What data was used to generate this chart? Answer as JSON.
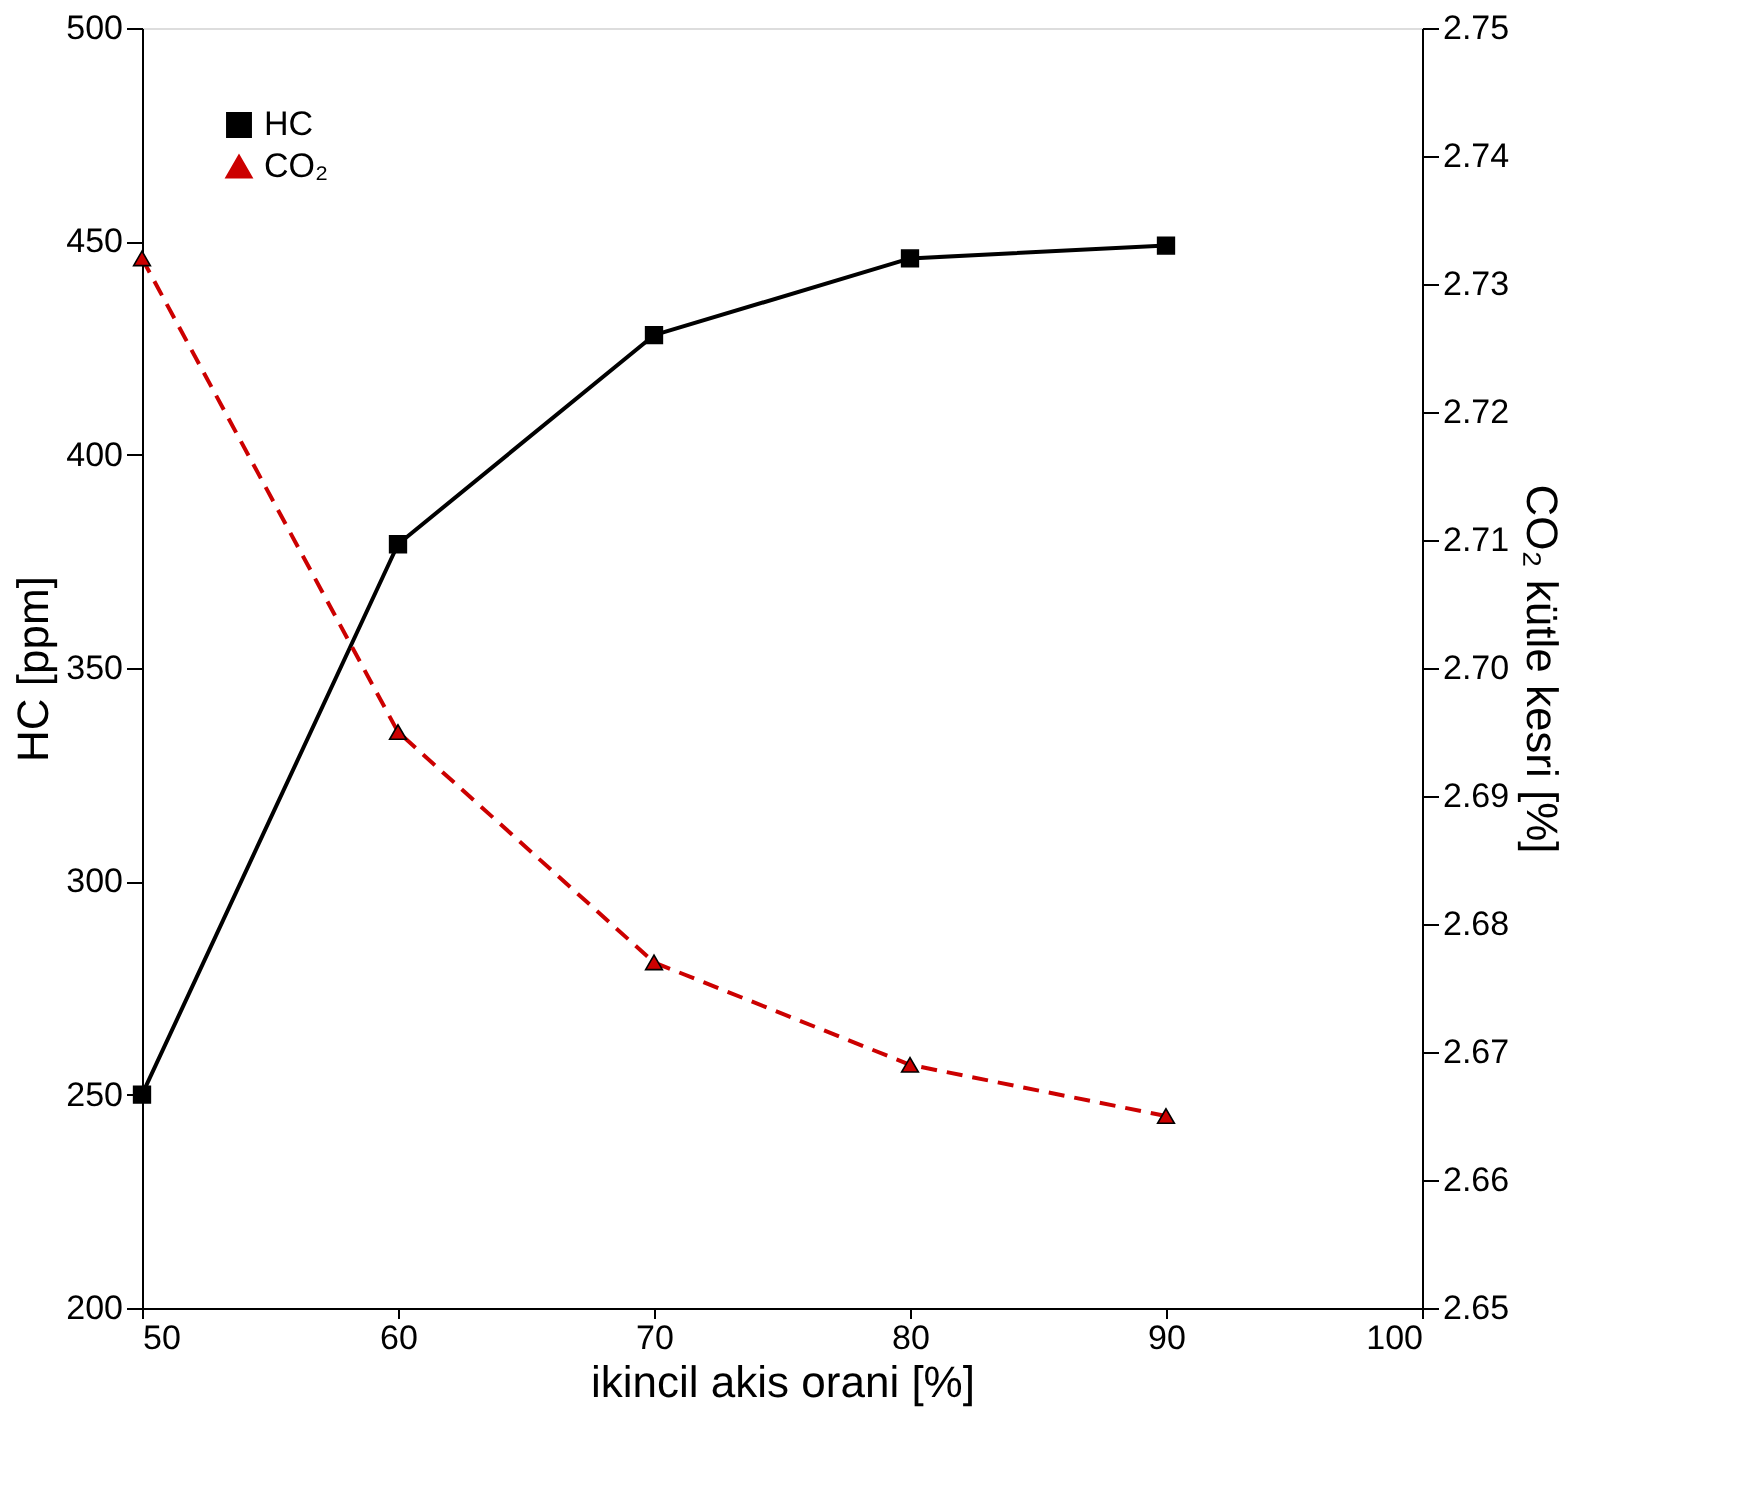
{
  "chart_data": {
    "type": "line",
    "xlabel": "ikincil akis orani [%]",
    "ylabel": "HC [ppm]",
    "y2label": "CO₂ kütle kesri [%]",
    "x": [
      50,
      60,
      70,
      80,
      90
    ],
    "xlim": [
      50,
      100
    ],
    "xticks": [
      50,
      60,
      70,
      80,
      90,
      100
    ],
    "ylim": [
      200,
      500
    ],
    "yticks": [
      200,
      250,
      300,
      350,
      400,
      450,
      500
    ],
    "y2lim": [
      2.65,
      2.75
    ],
    "y2ticks": [
      2.65,
      2.66,
      2.67,
      2.68,
      2.69,
      {
        "value": 2.7,
        "label": "2.70"
      },
      2.71,
      2.72,
      2.73,
      2.74,
      2.75
    ],
    "grid": false,
    "legend": "top left",
    "series": [
      {
        "name": "HC",
        "color": "#000000",
        "values": [
          250,
          379,
          428,
          446,
          449
        ],
        "marker": "square",
        "line_style": "solid"
      },
      {
        "name": "CO₂",
        "color": "#cc0000",
        "values": [
          2.732,
          2.695,
          2.677,
          2.669,
          2.665
        ],
        "marker": "triangle",
        "line_style": "dashed",
        "axis": "y2"
      }
    ]
  }
}
